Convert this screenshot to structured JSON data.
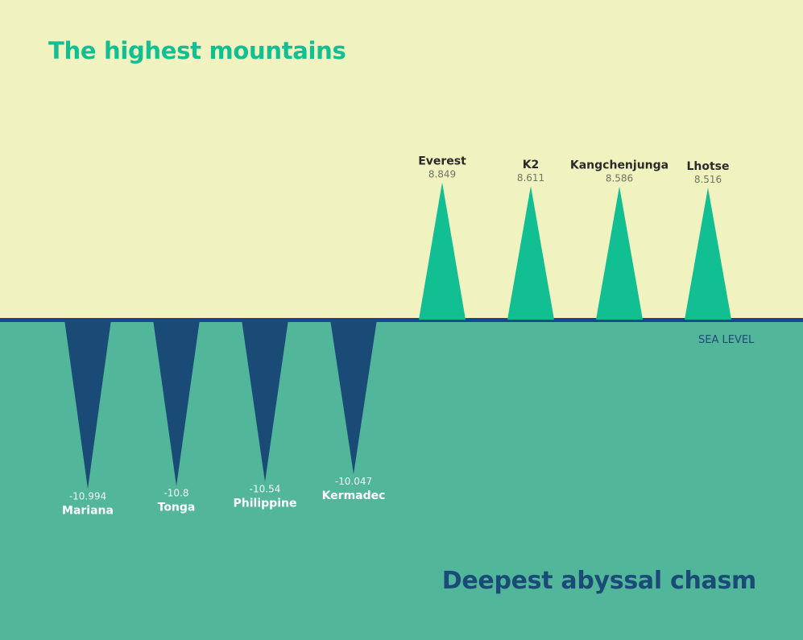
{
  "chart_data": {
    "type": "bar",
    "title": "The highest mountains",
    "subtitle": "Deepest abyssal chasm",
    "baseline_label": "SEA LEVEL",
    "ylim": [
      -11,
      10
    ],
    "colors": {
      "sky": "#f0f3c0",
      "sea": "#52b69a",
      "mountain": "#12bf93",
      "trench": "#1a4b77",
      "sea_line": "#14478f"
    },
    "trenches": {
      "categories": [
        "Mariana",
        "Tonga",
        "Philippine",
        "Kermadec"
      ],
      "value_labels": [
        "-10.994",
        "-10.8",
        "-10.54",
        "-10.047"
      ],
      "values": [
        -10.994,
        -10.8,
        -10.54,
        -10.047
      ]
    },
    "mountains": {
      "categories": [
        "Everest",
        "K2",
        "Kangchenjunga",
        "Lhotse"
      ],
      "value_labels": [
        "8.849",
        "8.611",
        "8.586",
        "8.516"
      ],
      "values": [
        8.849,
        8.611,
        8.586,
        8.516
      ]
    }
  }
}
